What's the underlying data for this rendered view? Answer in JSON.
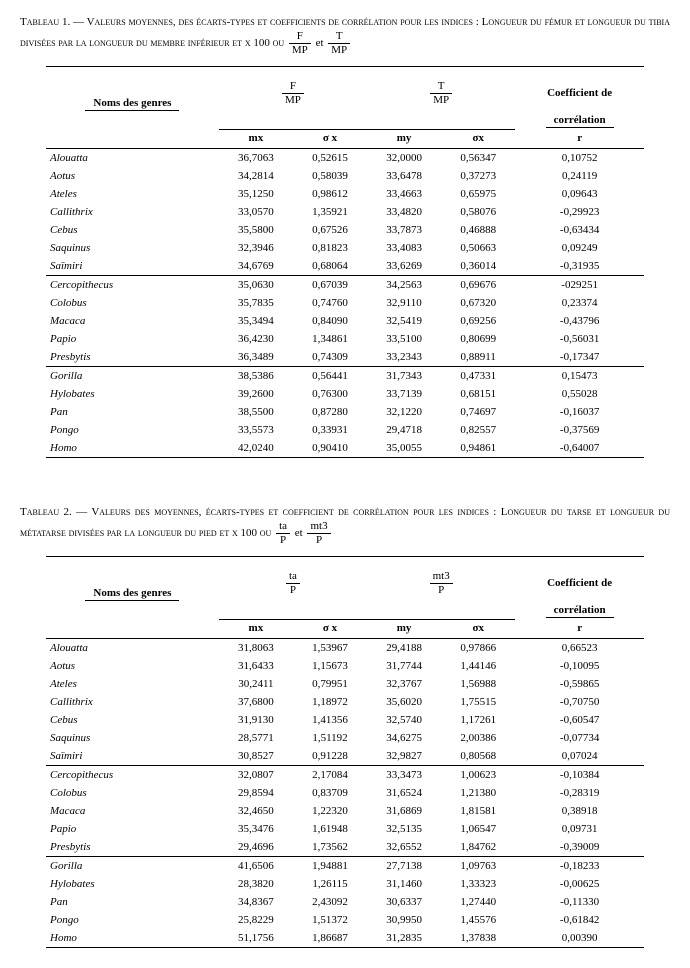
{
  "tableau1": {
    "caption_prefix": "Tableau 1. — ",
    "caption_main": "Valeurs moyennes, des écarts-types et coefficients de corrélation pour les indices : Longueur du fémur et longueur du tibia divisées par la longueur du membre inférieur et x 100 ou",
    "frac1_num": "F",
    "frac1_den": "MP",
    "et": "et",
    "frac2_num": "T",
    "frac2_den": "MP",
    "head_noms": "Noms des genres",
    "head_col1_num": "F",
    "head_col1_den": "MP",
    "head_col2_num": "T",
    "head_col2_den": "MP",
    "head_coef1": "Coefficient de",
    "head_coef2": "corrélation",
    "sub_mx": "mx",
    "sub_sx": "σ x",
    "sub_my": "my",
    "sub_sy": "σx",
    "sub_r": "r",
    "groups": [
      [
        {
          "name": "Alouatta",
          "mx": "36,7063",
          "sx": "0,52615",
          "my": "32,0000",
          "sy": "0,56347",
          "r": "0,10752"
        },
        {
          "name": "Aotus",
          "mx": "34,2814",
          "sx": "0,58039",
          "my": "33,6478",
          "sy": "0,37273",
          "r": "0,24119"
        },
        {
          "name": "Ateles",
          "mx": "35,1250",
          "sx": "0,98612",
          "my": "33,4663",
          "sy": "0,65975",
          "r": "0,09643"
        },
        {
          "name": "Callithrix",
          "mx": "33,0570",
          "sx": "1,35921",
          "my": "33,4820",
          "sy": "0,58076",
          "r": "-0,29923"
        },
        {
          "name": "Cebus",
          "mx": "35,5800",
          "sx": "0,67526",
          "my": "33,7873",
          "sy": "0,46888",
          "r": "-0,63434"
        },
        {
          "name": "Saquinus",
          "mx": "32,3946",
          "sx": "0,81823",
          "my": "33,4083",
          "sy": "0,50663",
          "r": "0,09249"
        },
        {
          "name": "Saïmiri",
          "mx": "34,6769",
          "sx": "0,68064",
          "my": "33,6269",
          "sy": "0,36014",
          "r": "-0,31935"
        }
      ],
      [
        {
          "name": "Cercopithecus",
          "mx": "35,0630",
          "sx": "0,67039",
          "my": "34,2563",
          "sy": "0,69676",
          "r": "-029251"
        },
        {
          "name": "Colobus",
          "mx": "35,7835",
          "sx": "0,74760",
          "my": "32,9110",
          "sy": "0,67320",
          "r": "0,23374"
        },
        {
          "name": "Macaca",
          "mx": "35,3494",
          "sx": "0,84090",
          "my": "32,5419",
          "sy": "0,69256",
          "r": "-0,43796"
        },
        {
          "name": "Papio",
          "mx": "36,4230",
          "sx": "1,34861",
          "my": "33,5100",
          "sy": "0,80699",
          "r": "-0,56031"
        },
        {
          "name": "Presbytis",
          "mx": "36,3489",
          "sx": "0,74309",
          "my": "33,2343",
          "sy": "0,88911",
          "r": "-0,17347"
        }
      ],
      [
        {
          "name": "Gorilla",
          "mx": "38,5386",
          "sx": "0,56441",
          "my": "31,7343",
          "sy": "0,47331",
          "r": "0,15473"
        },
        {
          "name": "Hylobates",
          "mx": "39,2600",
          "sx": "0,76300",
          "my": "33,7139",
          "sy": "0,68151",
          "r": "0,55028"
        },
        {
          "name": "Pan",
          "mx": "38,5500",
          "sx": "0,87280",
          "my": "32,1220",
          "sy": "0,74697",
          "r": "-0,16037"
        },
        {
          "name": "Pongo",
          "mx": "33,5573",
          "sx": "0,33931",
          "my": "29,4718",
          "sy": "0,82557",
          "r": "-0,37569"
        },
        {
          "name": "Homo",
          "mx": "42,0240",
          "sx": "0,90410",
          "my": "35,0055",
          "sy": "0,94861",
          "r": "-0,64007"
        }
      ]
    ]
  },
  "tableau2": {
    "caption_prefix": "Tableau 2. — ",
    "caption_main": "Valeurs des moyennes, écarts-types et coefficient de corrélation pour les indices : Longueur du tarse et longueur du métatarse divisées par la longueur du pied et x 100 ou",
    "frac1_num": "ta",
    "frac1_den": "P",
    "et": "et",
    "frac2_num": "mt3",
    "frac2_den": "P",
    "head_noms": "Noms des genres",
    "head_col1_num": "ta",
    "head_col1_den": "P",
    "head_col2_num": "mt3",
    "head_col2_den": "P",
    "head_coef1": "Coefficient de",
    "head_coef2": "corrélation",
    "sub_mx": "mx",
    "sub_sx": "σ x",
    "sub_my": "my",
    "sub_sy": "σx",
    "sub_r": "r",
    "groups": [
      [
        {
          "name": "Alouatta",
          "mx": "31,8063",
          "sx": "1,53967",
          "my": "29,4188",
          "sy": "0,97866",
          "r": "0,66523"
        },
        {
          "name": "Aotus",
          "mx": "31,6433",
          "sx": "1,15673",
          "my": "31,7744",
          "sy": "1,44146",
          "r": "-0,10095"
        },
        {
          "name": "Ateles",
          "mx": "30,2411",
          "sx": "0,79951",
          "my": "32,3767",
          "sy": "1,56988",
          "r": "-0,59865"
        },
        {
          "name": "Callithrix",
          "mx": "37,6800",
          "sx": "1,18972",
          "my": "35,6020",
          "sy": "1,75515",
          "r": "-0,70750"
        },
        {
          "name": "Cebus",
          "mx": "31,9130",
          "sx": "1,41356",
          "my": "32,5740",
          "sy": "1,17261",
          "r": "-0,60547"
        },
        {
          "name": "Saquinus",
          "mx": "28,5771",
          "sx": "1,51192",
          "my": "34,6275",
          "sy": "2,00386",
          "r": "-0,07734"
        },
        {
          "name": "Saïmiri",
          "mx": "30,8527",
          "sx": "0,91228",
          "my": "32,9827",
          "sy": "0,80568",
          "r": "0,07024"
        }
      ],
      [
        {
          "name": "Cercopithecus",
          "mx": "32,0807",
          "sx": "2,17084",
          "my": "33,3473",
          "sy": "1,00623",
          "r": "-0,10384"
        },
        {
          "name": "Colobus",
          "mx": "29,8594",
          "sx": "0,83709",
          "my": "31,6524",
          "sy": "1,21380",
          "r": "-0,28319"
        },
        {
          "name": "Macaca",
          "mx": "32,4650",
          "sx": "1,22320",
          "my": "31,6869",
          "sy": "1,81581",
          "r": "0,38918"
        },
        {
          "name": "Papio",
          "mx": "35,3476",
          "sx": "1,61948",
          "my": "32,5135",
          "sy": "1,06547",
          "r": "0,09731"
        },
        {
          "name": "Presbytis",
          "mx": "29,4696",
          "sx": "1,73562",
          "my": "32,6552",
          "sy": "1,84762",
          "r": "-0,39009"
        }
      ],
      [
        {
          "name": "Gorilla",
          "mx": "41,6506",
          "sx": "1,94881",
          "my": "27,7138",
          "sy": "1,09763",
          "r": "-0,18233"
        },
        {
          "name": "Hylobates",
          "mx": "28,3820",
          "sx": "1,26115",
          "my": "31,1460",
          "sy": "1,33323",
          "r": "-0,00625"
        },
        {
          "name": "Pan",
          "mx": "34,8367",
          "sx": "2,43092",
          "my": "30,6337",
          "sy": "1,27440",
          "r": "-0,11330"
        },
        {
          "name": "Pongo",
          "mx": "25,8229",
          "sx": "1,51372",
          "my": "30,9950",
          "sy": "1,45576",
          "r": "-0,61842"
        },
        {
          "name": "Homo",
          "mx": "51,1756",
          "sx": "1,86687",
          "my": "31,2835",
          "sy": "1,37838",
          "r": "0,00390"
        }
      ]
    ]
  }
}
